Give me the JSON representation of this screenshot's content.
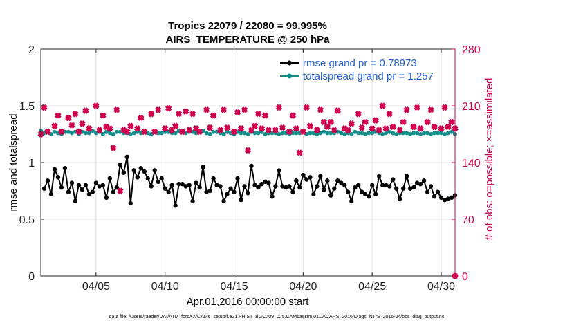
{
  "chart_data": {
    "type": "line",
    "title": "Tropics 22079 / 22080 = 99.995%",
    "subtitle": "AIRS_TEMPERATURE @ 250 hPa",
    "xlabel": "Apr.01,2016 00:00:00 start",
    "ylabel_left": "rmse and totalspread",
    "ylabel_right": "# of obs: o=possible; ×=assimilated",
    "footnote": "data file: /Users/raeder/DAI/ATM_forcXX/CAM6_setup/f.e21.FHIST_BGC.f09_025.CAM6assim.011/ACARS_2016/Diags_NTrS_2016-04/obs_diag_output.nc",
    "xlim": [
      1.0,
      31.0
    ],
    "ylim_left": [
      0,
      2
    ],
    "ylim_right": [
      0,
      280
    ],
    "x_ticks": [
      {
        "x": 5,
        "label": "04/05"
      },
      {
        "x": 10,
        "label": "04/10"
      },
      {
        "x": 15,
        "label": "04/15"
      },
      {
        "x": 20,
        "label": "04/20"
      },
      {
        "x": 25,
        "label": "04/25"
      },
      {
        "x": 30,
        "label": "04/30"
      }
    ],
    "y_ticks_left": [
      {
        "v": 0,
        "label": "0"
      },
      {
        "v": 0.5,
        "label": "0.5"
      },
      {
        "v": 1,
        "label": "1"
      },
      {
        "v": 1.5,
        "label": "1.5"
      },
      {
        "v": 2,
        "label": "2"
      }
    ],
    "y_ticks_right": [
      {
        "v": 0,
        "label": "0"
      },
      {
        "v": 70,
        "label": "70"
      },
      {
        "v": 140,
        "label": "140"
      },
      {
        "v": 210,
        "label": "210"
      },
      {
        "v": 280,
        "label": "280"
      }
    ],
    "grid": true,
    "legend_position": "top-right",
    "series": [
      {
        "name": "rmse",
        "legend_label": "rmse grand pr = 0.78973",
        "axis": "left",
        "color": "#000000",
        "marker": "circle",
        "x": [
          1.25,
          1.5,
          1.75,
          2.0,
          2.25,
          2.5,
          2.75,
          3.0,
          3.25,
          3.5,
          3.75,
          4.0,
          4.25,
          4.5,
          4.75,
          5.0,
          5.25,
          5.5,
          5.75,
          6.0,
          6.25,
          6.5,
          6.75,
          7.0,
          7.25,
          7.5,
          7.75,
          8.0,
          8.25,
          8.5,
          8.75,
          9.0,
          9.25,
          9.5,
          9.75,
          10.0,
          10.25,
          10.5,
          10.75,
          11.0,
          11.25,
          11.5,
          11.75,
          12.0,
          12.25,
          12.5,
          12.75,
          13.0,
          13.25,
          13.5,
          13.75,
          14.0,
          14.25,
          14.5,
          14.75,
          15.0,
          15.25,
          15.5,
          15.75,
          16.0,
          16.25,
          16.5,
          16.75,
          17.0,
          17.25,
          17.5,
          17.75,
          18.0,
          18.25,
          18.5,
          18.75,
          19.0,
          19.25,
          19.5,
          19.75,
          20.0,
          20.25,
          20.5,
          20.75,
          21.0,
          21.25,
          21.5,
          21.75,
          22.0,
          22.25,
          22.5,
          22.75,
          23.0,
          23.25,
          23.5,
          23.75,
          24.0,
          24.25,
          24.5,
          24.75,
          25.0,
          25.25,
          25.5,
          25.75,
          26.0,
          26.25,
          26.5,
          26.75,
          27.0,
          27.25,
          27.5,
          27.75,
          28.0,
          28.25,
          28.5,
          28.75,
          29.0,
          29.25,
          29.5,
          29.75,
          30.0,
          30.25,
          30.5,
          30.75,
          31.0
        ],
        "values": [
          0.77,
          0.84,
          0.72,
          0.94,
          0.87,
          0.78,
          0.95,
          0.74,
          0.82,
          0.66,
          0.8,
          0.76,
          0.8,
          0.72,
          0.74,
          0.82,
          0.79,
          0.8,
          0.69,
          0.86,
          0.74,
          0.78,
          0.98,
          0.91,
          1.05,
          0.64,
          0.93,
          0.87,
          0.95,
          0.92,
          0.86,
          0.79,
          0.93,
          0.83,
          0.86,
          0.77,
          0.74,
          0.8,
          0.62,
          0.81,
          0.81,
          0.79,
          0.8,
          0.66,
          0.82,
          0.78,
          0.96,
          0.74,
          0.75,
          0.86,
          0.8,
          0.79,
          0.66,
          0.72,
          0.77,
          0.74,
          0.86,
          0.67,
          0.79,
          0.73,
          0.97,
          0.8,
          0.78,
          0.81,
          0.83,
          0.82,
          0.7,
          0.79,
          0.93,
          0.79,
          0.78,
          0.79,
          0.74,
          0.84,
          0.78,
          0.89,
          0.85,
          0.87,
          0.72,
          0.79,
          0.88,
          0.76,
          0.84,
          0.71,
          0.77,
          0.84,
          0.82,
          0.8,
          0.74,
          0.66,
          0.78,
          0.8,
          0.74,
          0.72,
          0.7,
          0.8,
          0.72,
          0.88,
          0.8,
          0.8,
          0.79,
          0.85,
          0.77,
          0.68,
          0.77,
          0.88,
          0.77,
          0.78,
          0.82,
          0.81,
          0.84,
          0.74,
          0.79,
          0.7,
          0.74,
          0.69,
          0.67,
          0.68,
          0.69,
          0.71
        ]
      },
      {
        "name": "totalspread",
        "legend_label": "totalspread grand pr = 1.257",
        "axis": "left",
        "color": "#138c8c",
        "marker": "circle",
        "x_start": 1.0,
        "x_step": 0.25,
        "values": [
          1.28,
          1.26,
          1.28,
          1.25,
          1.27,
          1.26,
          1.25,
          1.27,
          1.27,
          1.26,
          1.27,
          1.25,
          1.27,
          1.26,
          1.26,
          1.28,
          1.26,
          1.27,
          1.25,
          1.27,
          1.26,
          1.25,
          1.27,
          1.27,
          1.26,
          1.26,
          1.25,
          1.26,
          1.27,
          1.26,
          1.27,
          1.26,
          1.25,
          1.27,
          1.26,
          1.26,
          1.27,
          1.27,
          1.26,
          1.26,
          1.28,
          1.27,
          1.26,
          1.27,
          1.27,
          1.26,
          1.27,
          1.28,
          1.26,
          1.25,
          1.27,
          1.27,
          1.26,
          1.25,
          1.27,
          1.26,
          1.25,
          1.27,
          1.26,
          1.26,
          1.25,
          1.27,
          1.26,
          1.26,
          1.27,
          1.25,
          1.26,
          1.26,
          1.26,
          1.25,
          1.26,
          1.26,
          1.25,
          1.26,
          1.26,
          1.26,
          1.27,
          1.25,
          1.26,
          1.26,
          1.25,
          1.26,
          1.27,
          1.26,
          1.26,
          1.26,
          1.27,
          1.26,
          1.25,
          1.26,
          1.25,
          1.27,
          1.26,
          1.26,
          1.25,
          1.26,
          1.26,
          1.27,
          1.26,
          1.25,
          1.26,
          1.27,
          1.26,
          1.25,
          1.26,
          1.26,
          1.26,
          1.25,
          1.26,
          1.26,
          1.25,
          1.26,
          1.26,
          1.25,
          1.26,
          1.26,
          1.26,
          1.25,
          1.26,
          1.27,
          1.25
        ]
      },
      {
        "name": "obs_possible",
        "axis": "right",
        "color": "#d1004f",
        "marker": "circle",
        "x": [
          31.0
        ],
        "values": [
          0
        ]
      },
      {
        "name": "obs_assimilated",
        "axis": "right",
        "color": "#d1004f",
        "marker": "plus-filled",
        "x": [
          1.0,
          1.25,
          1.5,
          2.0,
          2.25,
          2.5,
          3.0,
          3.25,
          3.5,
          3.75,
          4.0,
          4.25,
          4.5,
          5.0,
          5.25,
          5.5,
          5.75,
          6.0,
          6.25,
          6.5,
          6.75,
          7.0,
          7.25,
          7.5,
          8.0,
          8.25,
          8.5,
          9.0,
          9.25,
          9.5,
          10.0,
          10.25,
          10.5,
          10.75,
          11.0,
          11.25,
          11.5,
          11.75,
          12.0,
          12.25,
          12.5,
          13.0,
          13.25,
          13.5,
          14.0,
          14.25,
          14.5,
          15.0,
          15.25,
          15.5,
          15.75,
          16.0,
          16.25,
          16.5,
          16.75,
          17.0,
          17.25,
          17.5,
          18.0,
          18.25,
          18.5,
          19.0,
          19.25,
          19.5,
          19.75,
          20.0,
          20.25,
          20.5,
          21.0,
          21.25,
          21.5,
          21.75,
          22.0,
          22.25,
          22.5,
          23.0,
          23.25,
          23.5,
          24.0,
          24.25,
          24.5,
          25.0,
          25.25,
          25.5,
          25.75,
          26.0,
          26.25,
          26.5,
          27.0,
          27.25,
          27.5,
          28.0,
          28.25,
          28.5,
          29.0,
          29.25,
          29.5,
          30.0,
          30.25,
          30.5,
          30.75,
          31.0
        ],
        "values": [
          175,
          208,
          178,
          185,
          198,
          178,
          195,
          186,
          200,
          178,
          188,
          204,
          182,
          210,
          180,
          198,
          184,
          182,
          158,
          205,
          105,
          180,
          178,
          185,
          182,
          195,
          178,
          200,
          178,
          205,
          182,
          207,
          180,
          185,
          200,
          178,
          203,
          180,
          200,
          182,
          178,
          205,
          183,
          198,
          180,
          205,
          183,
          178,
          202,
          182,
          205,
          155,
          180,
          185,
          200,
          182,
          198,
          180,
          180,
          208,
          183,
          178,
          198,
          182,
          152,
          178,
          208,
          185,
          180,
          205,
          190,
          184,
          190,
          180,
          204,
          182,
          180,
          188,
          200,
          183,
          190,
          182,
          192,
          180,
          210,
          182,
          200,
          184,
          180,
          190,
          205,
          184,
          208,
          182,
          190,
          205,
          184,
          182,
          208,
          184,
          190,
          182
        ]
      }
    ]
  }
}
